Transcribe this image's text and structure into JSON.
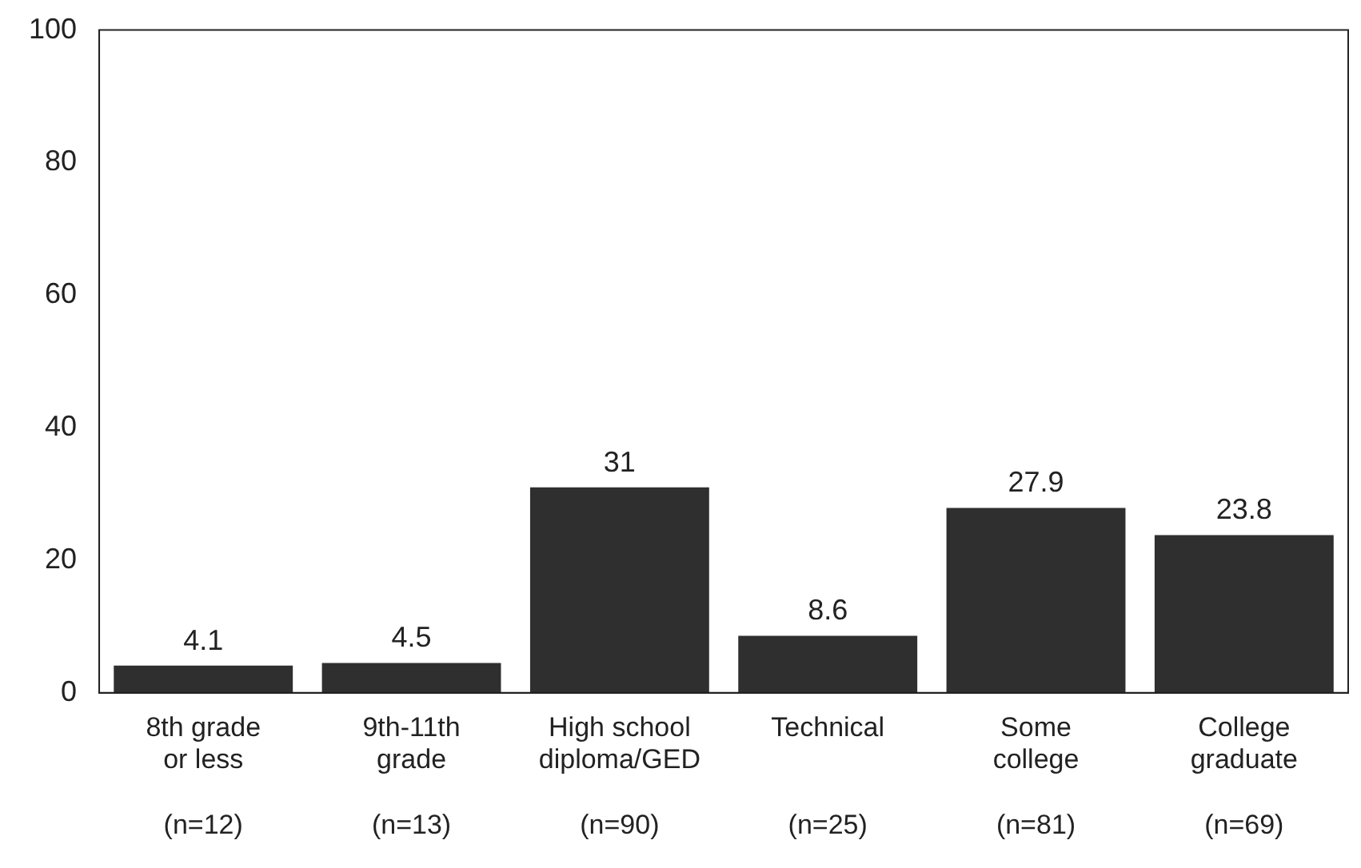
{
  "chart_data": {
    "type": "bar",
    "categories": [
      "8th grade\nor less\n(n=12)",
      "9th-11th\ngrade\n(n=13)",
      "High school\ndiploma/GED\n(n=90)",
      "Technical\n\n(n=25)",
      "Some\ncollege\n(n=81)",
      "College\ngraduate\n(n=69)"
    ],
    "values": [
      4.1,
      4.5,
      31,
      8.6,
      27.9,
      23.8
    ],
    "color": "#2f2f2f",
    "ylim": [
      0,
      100
    ],
    "yticks": [
      0,
      20,
      40,
      60,
      80,
      100
    ],
    "grid": false,
    "legend": false,
    "data_labels": true
  }
}
